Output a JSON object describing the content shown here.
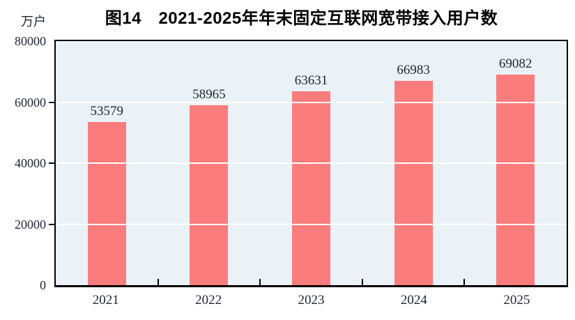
{
  "header": {
    "title": "图14　2021-2025年年末固定互联网宽带接入用户数",
    "unit_label": "万户"
  },
  "chart_data": {
    "type": "bar",
    "title": "图14　2021-2025年年末固定互联网宽带接入用户数",
    "ylabel": "万户",
    "xlabel": "",
    "categories": [
      "2021",
      "2022",
      "2023",
      "2024",
      "2025"
    ],
    "values": [
      53579,
      58965,
      63631,
      66983,
      69082
    ],
    "ylim": [
      0,
      80000
    ],
    "yticks": [
      0,
      20000,
      40000,
      60000,
      80000
    ],
    "grid": "horizontal white lines at 20000/40000/60000",
    "legend_position": "none",
    "colors": {
      "bar": "#FB7C7C",
      "plot_background": "#EBF2F7",
      "grid_line": "#FFFFFF",
      "axis_frame": "#000000",
      "label_text": "#1E2633",
      "title_text": "#000000"
    }
  }
}
